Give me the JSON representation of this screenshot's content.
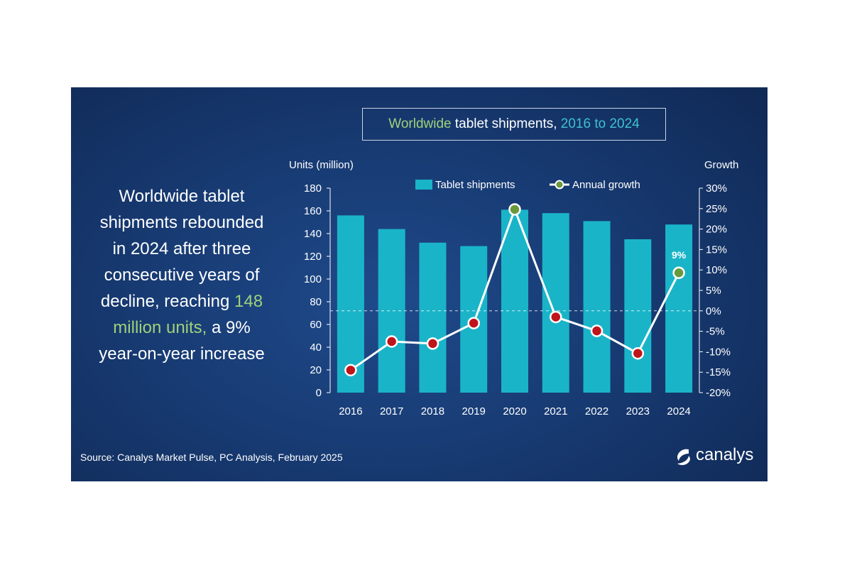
{
  "title": {
    "part1": "Worldwide",
    "part2": " tablet shipments, ",
    "part3": "2016 to 2024"
  },
  "headline": {
    "line1": "Worldwide tablet",
    "line2": "shipments rebounded",
    "line3": "in 2024 after three",
    "line4": "consecutive years of",
    "line5_pre": "decline, reaching ",
    "line5_hl": "148",
    "line6_hl": "million units,",
    "line6_post": " a 9%",
    "line7": "year-on-year increase"
  },
  "source": "Source: Canalys Market Pulse, PC Analysis, February 2025",
  "brand": {
    "name": "canalys",
    "icon": "canalys-logo-icon"
  },
  "colors": {
    "bar": "#1ab4c8",
    "line": "#ffffff",
    "marker_red": "#c0141b",
    "marker_green": "#6a9a3c",
    "highlight_green": "#9fd17a",
    "highlight_teal": "#3fc0d0"
  },
  "chart_data": {
    "type": "bar",
    "categories": [
      "2016",
      "2017",
      "2018",
      "2019",
      "2020",
      "2021",
      "2022",
      "2023",
      "2024"
    ],
    "series": [
      {
        "name": "Tablet shipments",
        "type": "bar",
        "axis": "left",
        "values": [
          156,
          144,
          132,
          129,
          161,
          158,
          151,
          135,
          148
        ]
      },
      {
        "name": "Annual growth",
        "type": "line",
        "axis": "right",
        "values": [
          -14.5,
          -7.5,
          -8.0,
          -3.0,
          24.8,
          -1.5,
          -4.9,
          -10.4,
          9.3
        ]
      }
    ],
    "ylabel": "Units (million)",
    "y2label": "Growth",
    "ylim": [
      0,
      180
    ],
    "yticks": [
      "0",
      "20",
      "40",
      "60",
      "80",
      "100",
      "120",
      "140",
      "160",
      "180"
    ],
    "y2lim": [
      -20,
      30
    ],
    "y2ticks": [
      "-20%",
      "-15%",
      "-10%",
      "-5%",
      "0%",
      "5%",
      "10%",
      "15%",
      "20%",
      "25%",
      "30%"
    ],
    "annotations": [
      {
        "category": "2024",
        "text": "9%"
      }
    ],
    "legend": {
      "position": "top",
      "entries": [
        "Tablet shipments",
        "Annual growth"
      ]
    },
    "grid": false,
    "zero_line_dashed": true
  }
}
